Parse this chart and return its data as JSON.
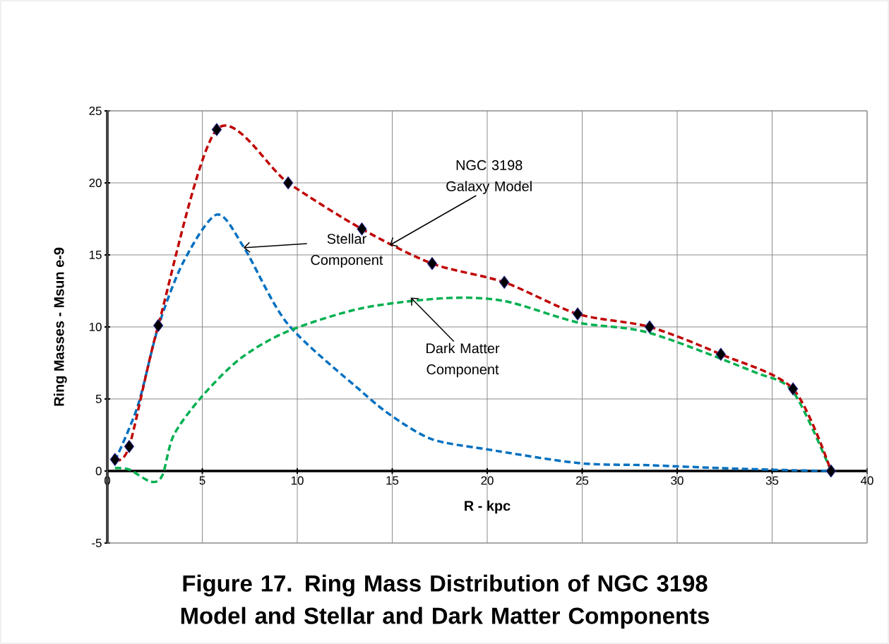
{
  "chart_data": {
    "type": "line",
    "title": "Figure 17. Ring Mass Distribution of NGC 3198 Model and Stellar and Dark Matter Components",
    "xlabel": "R - kpc",
    "ylabel": "Ring Masses - Msun e-9",
    "xlim": [
      0,
      40
    ],
    "ylim": [
      -5,
      25
    ],
    "xticks": [
      0,
      5,
      10,
      15,
      20,
      25,
      30,
      35,
      40
    ],
    "yticks": [
      -5,
      0,
      5,
      10,
      15,
      20,
      25
    ],
    "grid": true,
    "line_style": "dashed",
    "series": [
      {
        "color": "#0070c0",
        "marker": "none",
        "x": [
          0.4,
          1.6,
          2.68,
          4,
          5.76,
          7.2,
          9.5,
          13.4,
          15,
          17.1,
          20,
          24.8,
          28.5,
          32.3,
          36.1,
          38.1
        ],
        "values": [
          0.7,
          4.5,
          10,
          14.5,
          17.8,
          15.5,
          10.2,
          5.5,
          3.8,
          2.2,
          1.5,
          0.55,
          0.4,
          0.2,
          0.05,
          0
        ]
      },
      {
        "color": "#00b050",
        "marker": "none",
        "x": [
          0.4,
          1.15,
          2.3,
          2.9,
          3.5,
          5,
          7,
          9.5,
          13.4,
          17.8,
          20.9,
          24.8,
          28.5,
          34,
          36.1,
          38.1
        ],
        "values": [
          0.2,
          0.1,
          -0.75,
          -0.3,
          2.5,
          5.2,
          7.8,
          9.7,
          11.3,
          12,
          11.8,
          10.3,
          9.6,
          6.9,
          5.5,
          0
        ]
      },
      {
        "color": "#c00000",
        "marker": "diamond",
        "x": [
          0.4,
          1.15,
          2.68,
          5.76,
          9.52,
          13.4,
          17.1,
          20.9,
          24.76,
          28.55,
          32.3,
          36.1,
          38.1
        ],
        "values": [
          0.8,
          1.7,
          10.1,
          23.7,
          20,
          16.8,
          14.4,
          13.1,
          10.9,
          10,
          8.1,
          5.7,
          0
        ]
      }
    ],
    "annotations": [
      {
        "text": "NGC 3198 Galaxy Model",
        "x": 14.9,
        "y": 15.7
      },
      {
        "text": "Stellar Component",
        "x": 7.2,
        "y": 15.5
      },
      {
        "text": "Dark Matter Component",
        "x": 16,
        "y": 12
      }
    ]
  }
}
